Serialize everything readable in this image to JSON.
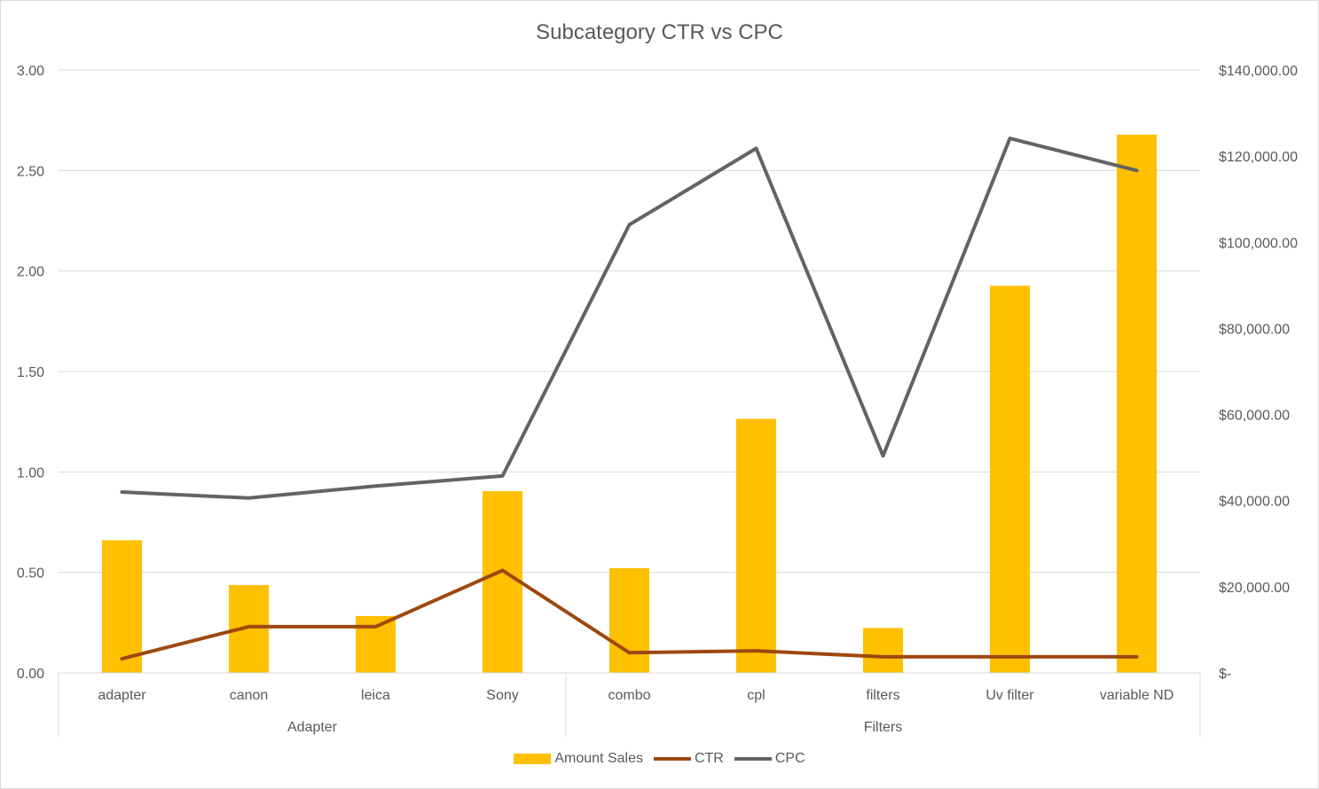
{
  "chart_data": {
    "type": "bar",
    "title": "Subcategory CTR vs CPC",
    "categories": [
      "adapter",
      "canon",
      "leica",
      "Sony",
      "combo",
      "cpl",
      "filters",
      "Uv filter",
      "variable ND"
    ],
    "groups": [
      {
        "label": "Adapter",
        "categories": [
          "adapter",
          "canon",
          "leica",
          "Sony"
        ]
      },
      {
        "label": "Filters",
        "categories": [
          "combo",
          "cpl",
          "filters",
          "Uv filter",
          "variable ND"
        ]
      }
    ],
    "series": [
      {
        "name": "Amount Sales",
        "type": "bar",
        "axis": "secondary",
        "color": "#ffc000",
        "values": [
          30800,
          20400,
          13200,
          42200,
          24300,
          59000,
          10400,
          89900,
          125000
        ]
      },
      {
        "name": "CTR",
        "type": "line",
        "axis": "primary",
        "color": "#9e480e",
        "values": [
          0.07,
          0.23,
          0.23,
          0.51,
          0.1,
          0.11,
          0.08,
          0.08,
          0.08
        ]
      },
      {
        "name": "CPC",
        "type": "line",
        "axis": "primary",
        "color": "#636363",
        "values": [
          0.9,
          0.87,
          0.93,
          0.98,
          2.23,
          2.61,
          1.08,
          2.66,
          2.5
        ]
      }
    ],
    "y_primary": {
      "min": 0,
      "max": 3,
      "ticks": [
        "0.00",
        "0.50",
        "1.00",
        "1.50",
        "2.00",
        "2.50",
        "3.00"
      ]
    },
    "y_secondary": {
      "min": 0,
      "max": 140000,
      "ticks": [
        "$-",
        "$20,000.00",
        "$40,000.00",
        "$60,000.00",
        "$80,000.00",
        "$100,000.00",
        "$120,000.00",
        "$140,000.00"
      ]
    },
    "legend_position": "bottom",
    "grid": true
  }
}
